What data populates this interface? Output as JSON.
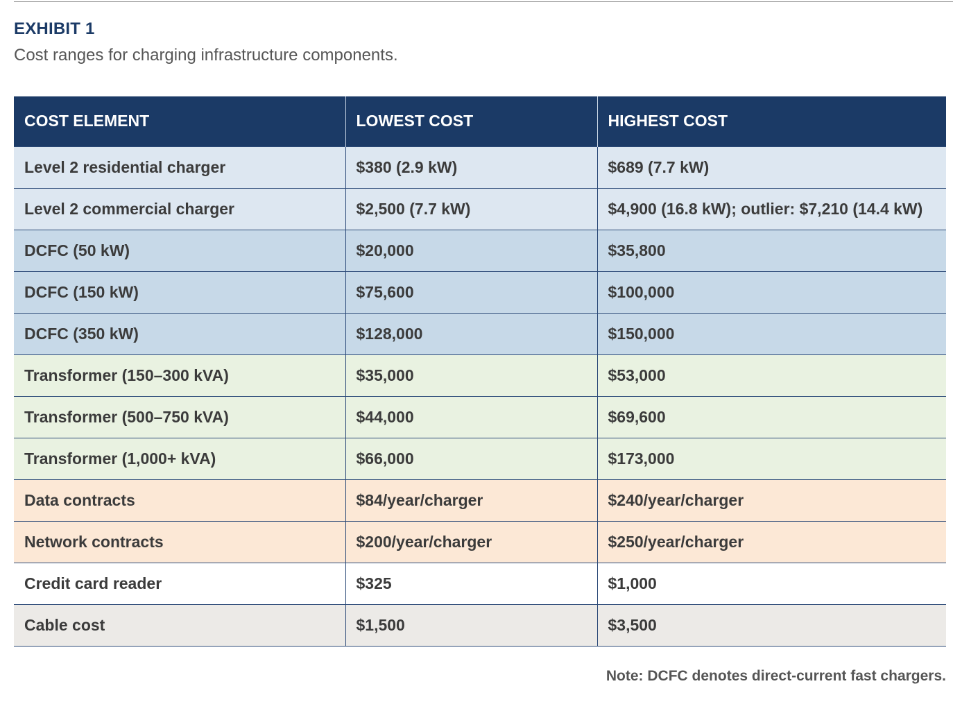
{
  "exhibit": {
    "label": "EXHIBIT 1",
    "title": "Cost ranges for charging infrastructure components."
  },
  "table": {
    "headers": [
      "COST ELEMENT",
      "LOWEST COST",
      "HIGHEST COST"
    ],
    "rows": [
      {
        "group": "light",
        "cells": [
          "Level 2 residential charger",
          "$380 (2.9 kW)",
          "$689 (7.7 kW)"
        ]
      },
      {
        "group": "light",
        "cells": [
          "Level 2 commercial charger",
          "$2,500 (7.7 kW)",
          "$4,900 (16.8 kW); outlier: $7,210 (14.4 kW)"
        ]
      },
      {
        "group": "blue",
        "cells": [
          "DCFC (50 kW)",
          "$20,000",
          "$35,800"
        ]
      },
      {
        "group": "blue",
        "cells": [
          "DCFC (150 kW)",
          "$75,600",
          "$100,000"
        ]
      },
      {
        "group": "blue",
        "cells": [
          "DCFC (350 kW)",
          "$128,000",
          "$150,000"
        ]
      },
      {
        "group": "green",
        "cells": [
          "Transformer (150–300 kVA)",
          "$35,000",
          "$53,000"
        ]
      },
      {
        "group": "green",
        "cells": [
          "Transformer (500–750 kVA)",
          "$44,000",
          "$69,600"
        ]
      },
      {
        "group": "green",
        "cells": [
          "Transformer (1,000+ kVA)",
          "$66,000",
          "$173,000"
        ]
      },
      {
        "group": "orange",
        "cells": [
          "Data contracts",
          "$84/year/charger",
          "$240/year/charger"
        ]
      },
      {
        "group": "orange",
        "cells": [
          "Network contracts",
          "$200/year/charger",
          "$250/year/charger"
        ]
      },
      {
        "group": "white",
        "cells": [
          "Credit card reader",
          "$325",
          "$1,000"
        ]
      },
      {
        "group": "gray",
        "cells": [
          "Cable cost",
          "$1,500",
          "$3,500"
        ]
      }
    ]
  },
  "note": "Note: DCFC denotes direct-current fast chargers.",
  "colors": {
    "header_bg": "#1b3a66",
    "label": "#1b3a66",
    "group_light": "#dde7f1",
    "group_blue": "#c7d9e8",
    "group_green": "#e9f2e1",
    "group_orange": "#fce8d6",
    "group_white": "#ffffff",
    "group_gray": "#eceae7"
  }
}
